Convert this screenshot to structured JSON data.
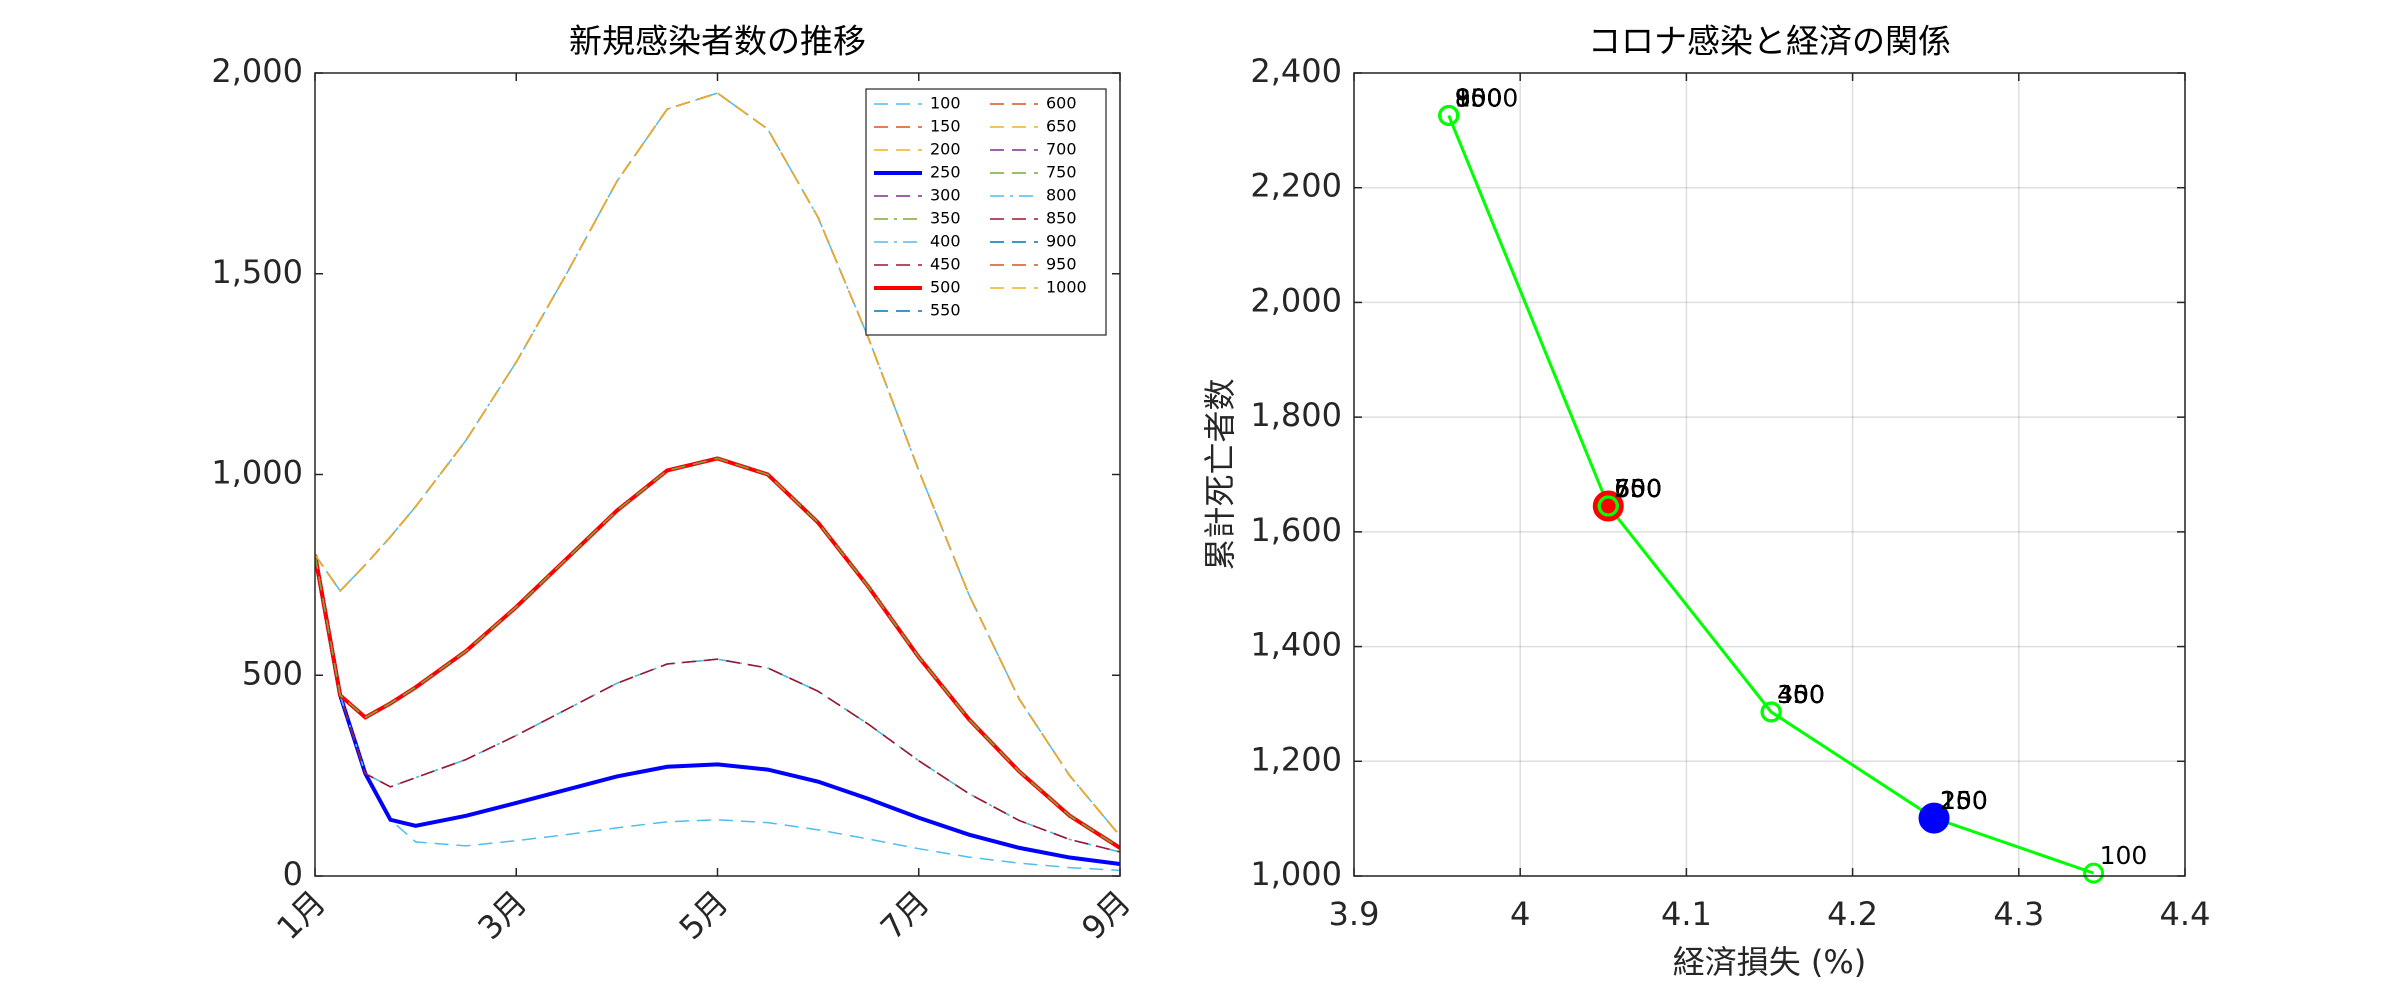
{
  "chart_data": [
    {
      "type": "line",
      "title": "新規感染者数の推移",
      "x": [
        1,
        1.25,
        1.5,
        1.75,
        2,
        2.5,
        3,
        3.5,
        4,
        4.5,
        5,
        5.5,
        6,
        6.5,
        7,
        7.5,
        8,
        8.5,
        9
      ],
      "xlim": [
        1,
        9
      ],
      "xticks": [
        {
          "value": 1,
          "label": "1月"
        },
        {
          "value": 3,
          "label": "3月"
        },
        {
          "value": 5,
          "label": "5月"
        },
        {
          "value": 7,
          "label": "7月"
        },
        {
          "value": 9,
          "label": "9月"
        }
      ],
      "ylim": [
        0,
        2000
      ],
      "yticks": [
        0,
        500,
        {
          "value": 1000,
          "label": "1,000"
        },
        {
          "value": 1500,
          "label": "1,500"
        },
        {
          "value": 2000,
          "label": "2,000"
        }
      ],
      "grid": false,
      "legend": "upper right",
      "legend_columns": 2,
      "series": [
        {
          "name": "100",
          "color": "#4DBEEE",
          "line_style": "dashed",
          "values": [
            800,
            450,
            255,
            140,
            85,
            75,
            88,
            103,
            120,
            135,
            140,
            133,
            115,
            92,
            68,
            47,
            32,
            21,
            14
          ]
        },
        {
          "name": "150",
          "color": "#D95319",
          "line_style": "dashed",
          "values": [
            800,
            450,
            255,
            140,
            125,
            150,
            182,
            215,
            248,
            272,
            278,
            265,
            235,
            192,
            145,
            103,
            70,
            46,
            30
          ]
        },
        {
          "name": "200",
          "color": "#EDB120",
          "line_style": "dashed",
          "values": [
            800,
            450,
            255,
            140,
            125,
            150,
            182,
            215,
            248,
            272,
            278,
            265,
            235,
            192,
            145,
            103,
            70,
            46,
            30
          ]
        },
        {
          "name": "250",
          "color": "#0000FF",
          "line_style": "solid",
          "values": [
            800,
            450,
            255,
            140,
            125,
            150,
            182,
            215,
            248,
            272,
            278,
            265,
            235,
            192,
            145,
            103,
            70,
            46,
            30
          ]
        },
        {
          "name": "300",
          "color": "#7E2F8E",
          "line_style": "dashed",
          "values": [
            800,
            450,
            255,
            222,
            245,
            290,
            350,
            415,
            480,
            528,
            540,
            518,
            460,
            378,
            287,
            205,
            138,
            91,
            60
          ]
        },
        {
          "name": "350",
          "color": "#77AC30",
          "line_style": "dashdot",
          "values": [
            800,
            450,
            255,
            222,
            245,
            290,
            350,
            415,
            480,
            528,
            540,
            518,
            460,
            378,
            287,
            205,
            138,
            91,
            60
          ]
        },
        {
          "name": "400",
          "color": "#4DBEEE",
          "line_style": "dashdot",
          "values": [
            800,
            450,
            255,
            222,
            245,
            290,
            350,
            415,
            480,
            528,
            540,
            518,
            460,
            378,
            287,
            205,
            138,
            91,
            60
          ]
        },
        {
          "name": "450",
          "color": "#A2142F",
          "line_style": "dashed",
          "values": [
            800,
            450,
            255,
            222,
            245,
            290,
            350,
            415,
            480,
            528,
            540,
            518,
            460,
            378,
            287,
            205,
            138,
            91,
            60
          ]
        },
        {
          "name": "500",
          "color": "#FF0000",
          "line_style": "solid",
          "values": [
            800,
            450,
            395,
            430,
            470,
            560,
            670,
            790,
            910,
            1010,
            1040,
            1000,
            880,
            720,
            545,
            390,
            260,
            150,
            70
          ]
        },
        {
          "name": "550",
          "color": "#0072BD",
          "line_style": "dashed",
          "values": [
            800,
            450,
            395,
            430,
            470,
            560,
            670,
            790,
            910,
            1010,
            1040,
            1000,
            880,
            720,
            545,
            390,
            260,
            150,
            70
          ]
        },
        {
          "name": "600",
          "color": "#D95319",
          "line_style": "dashed",
          "values": [
            800,
            450,
            395,
            430,
            470,
            560,
            670,
            790,
            910,
            1010,
            1040,
            1000,
            880,
            720,
            545,
            390,
            260,
            150,
            70
          ]
        },
        {
          "name": "650",
          "color": "#EDB120",
          "line_style": "dashed",
          "values": [
            800,
            450,
            395,
            430,
            470,
            560,
            670,
            790,
            910,
            1010,
            1040,
            1000,
            880,
            720,
            545,
            390,
            260,
            150,
            70
          ]
        },
        {
          "name": "700",
          "color": "#7E2F8E",
          "line_style": "dashed",
          "values": [
            800,
            450,
            395,
            430,
            470,
            560,
            670,
            790,
            910,
            1010,
            1040,
            1000,
            880,
            720,
            545,
            390,
            260,
            150,
            70
          ]
        },
        {
          "name": "750",
          "color": "#77AC30",
          "line_style": "dashed",
          "values": [
            800,
            450,
            395,
            430,
            470,
            560,
            670,
            790,
            910,
            1010,
            1040,
            1000,
            880,
            720,
            545,
            390,
            260,
            150,
            70
          ]
        },
        {
          "name": "800",
          "color": "#4DBEEE",
          "line_style": "dashdot",
          "values": [
            800,
            710,
            775,
            845,
            920,
            1085,
            1280,
            1500,
            1730,
            1910,
            1950,
            1860,
            1640,
            1340,
            1010,
            700,
            440,
            250,
            100
          ]
        },
        {
          "name": "850",
          "color": "#A2142F",
          "line_style": "dashed",
          "values": [
            800,
            710,
            775,
            845,
            920,
            1085,
            1280,
            1500,
            1730,
            1910,
            1950,
            1860,
            1640,
            1340,
            1010,
            700,
            440,
            250,
            100
          ]
        },
        {
          "name": "900",
          "color": "#0072BD",
          "line_style": "dashed",
          "values": [
            800,
            710,
            775,
            845,
            920,
            1085,
            1280,
            1500,
            1730,
            1910,
            1950,
            1860,
            1640,
            1340,
            1010,
            700,
            440,
            250,
            100
          ]
        },
        {
          "name": "950",
          "color": "#D95319",
          "line_style": "dashed",
          "values": [
            800,
            710,
            775,
            845,
            920,
            1085,
            1280,
            1500,
            1730,
            1910,
            1950,
            1860,
            1640,
            1340,
            1010,
            700,
            440,
            250,
            100
          ]
        },
        {
          "name": "1000",
          "color": "#EDB120",
          "line_style": "dashed",
          "values": [
            800,
            710,
            775,
            845,
            920,
            1085,
            1280,
            1500,
            1730,
            1910,
            1950,
            1860,
            1640,
            1340,
            1010,
            700,
            440,
            250,
            100
          ]
        }
      ]
    },
    {
      "type": "scatter",
      "title": "コロナ感染と経済の関係",
      "x_label": "経済損失 (%)",
      "y_label": "累計死亡者数",
      "xlim": [
        3.9,
        4.4
      ],
      "xticks": [
        3.9,
        4,
        4.1,
        4.2,
        4.3,
        4.4
      ],
      "ylim": [
        1000,
        2400
      ],
      "yticks": [
        {
          "value": 1000,
          "label": "1,000"
        },
        {
          "value": 1200,
          "label": "1,200"
        },
        {
          "value": 1400,
          "label": "1,400"
        },
        {
          "value": 1600,
          "label": "1,600"
        },
        {
          "value": 1800,
          "label": "1,800"
        },
        {
          "value": 2000,
          "label": "2,000"
        },
        {
          "value": 2200,
          "label": "2,200"
        },
        {
          "value": 2400,
          "label": "2,400"
        }
      ],
      "grid": true,
      "color": "#00FF00",
      "labels": [
        "100",
        "150",
        "200",
        "250",
        "300",
        "350",
        "400",
        "450",
        "500",
        "550",
        "600",
        "650",
        "700",
        "750",
        "800",
        "850",
        "900",
        "950",
        "1000"
      ],
      "x": [
        4.345,
        4.249,
        4.249,
        4.249,
        4.151,
        4.151,
        4.151,
        4.151,
        4.053,
        4.053,
        4.053,
        4.053,
        4.053,
        4.053,
        3.957,
        3.957,
        3.957,
        3.957,
        3.957
      ],
      "values": [
        1005,
        1101,
        1101,
        1101,
        1286,
        1286,
        1286,
        1286,
        1645,
        1645,
        1645,
        1645,
        1645,
        1645,
        2326,
        2326,
        2326,
        2326,
        2326
      ],
      "marker_fill": [
        null,
        null,
        null,
        "#0000FF",
        null,
        null,
        null,
        null,
        "#FF0000",
        null,
        null,
        null,
        null,
        null,
        null,
        null,
        null,
        null,
        null
      ]
    }
  ]
}
